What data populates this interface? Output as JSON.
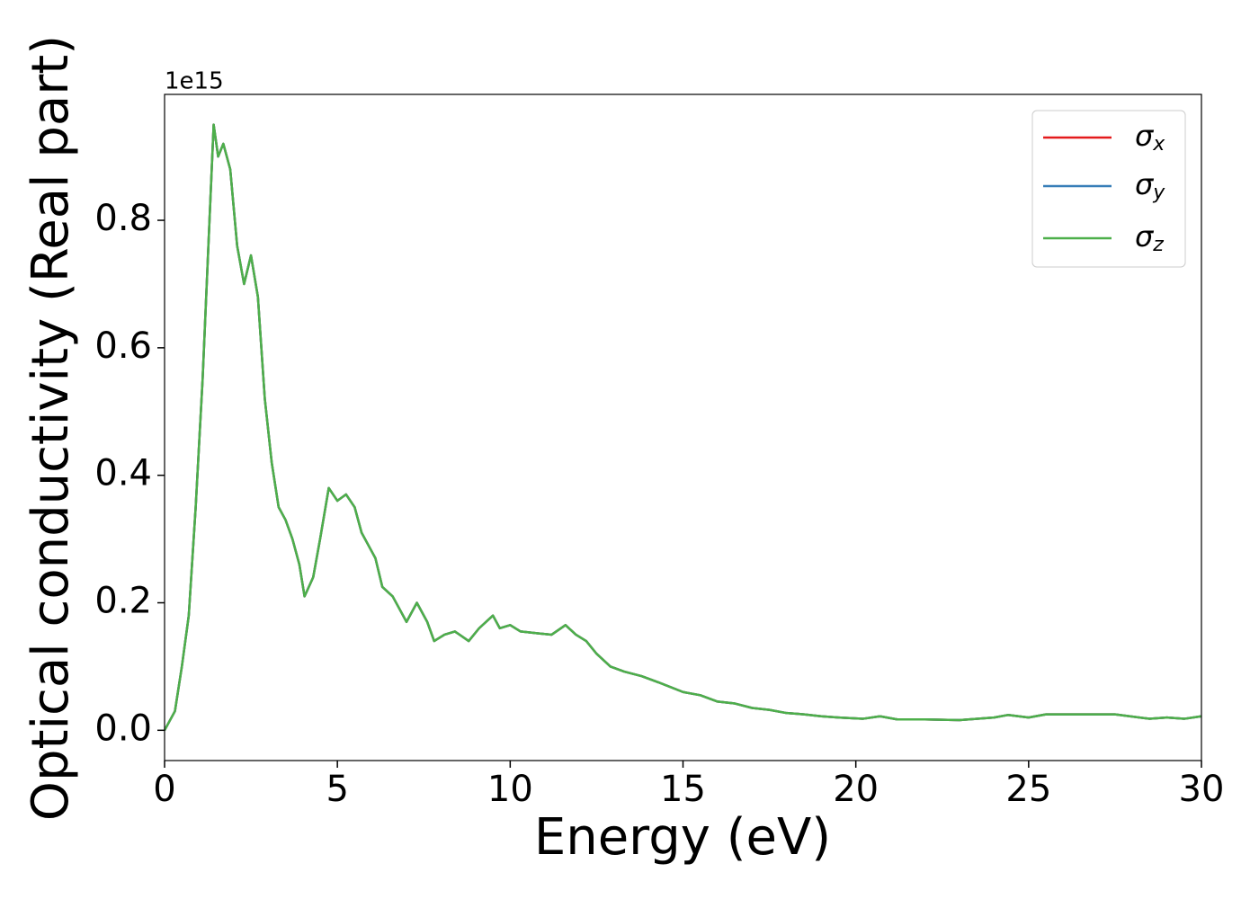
{
  "chart_data": {
    "type": "line",
    "xlabel": "Energy (eV)",
    "ylabel": "Optical conductivity (Real part)",
    "y_offset_label": "1e15",
    "x": [
      0,
      0.3,
      0.5,
      0.7,
      0.9,
      1.1,
      1.3,
      1.42,
      1.55,
      1.7,
      1.9,
      2.1,
      2.3,
      2.5,
      2.7,
      2.9,
      3.1,
      3.3,
      3.5,
      3.7,
      3.9,
      4.05,
      4.3,
      4.5,
      4.75,
      5.0,
      5.25,
      5.5,
      5.7,
      5.9,
      6.1,
      6.3,
      6.6,
      6.8,
      7.0,
      7.3,
      7.6,
      7.8,
      8.1,
      8.4,
      8.8,
      9.1,
      9.5,
      9.7,
      10.0,
      10.3,
      10.8,
      11.2,
      11.6,
      11.9,
      12.2,
      12.5,
      12.9,
      13.3,
      13.8,
      14.3,
      15.0,
      15.5,
      16.0,
      16.5,
      17.0,
      17.5,
      18.0,
      18.5,
      19.0,
      19.5,
      20.2,
      20.7,
      21.2,
      22.0,
      23.0,
      24.0,
      24.4,
      25.0,
      25.5,
      26.5,
      27.5,
      28.5,
      29.0,
      29.5,
      30.0
    ],
    "series": [
      {
        "name": "σx",
        "color": "#e41a1c",
        "values": [
          0,
          0.03,
          0.1,
          0.18,
          0.35,
          0.55,
          0.8,
          0.95,
          0.9,
          0.92,
          0.88,
          0.76,
          0.7,
          0.745,
          0.68,
          0.52,
          0.42,
          0.35,
          0.33,
          0.3,
          0.26,
          0.21,
          0.24,
          0.3,
          0.38,
          0.36,
          0.37,
          0.35,
          0.31,
          0.29,
          0.27,
          0.225,
          0.21,
          0.19,
          0.17,
          0.2,
          0.17,
          0.14,
          0.15,
          0.155,
          0.14,
          0.16,
          0.18,
          0.16,
          0.165,
          0.155,
          0.152,
          0.15,
          0.165,
          0.15,
          0.14,
          0.12,
          0.1,
          0.092,
          0.085,
          0.075,
          0.06,
          0.055,
          0.045,
          0.042,
          0.035,
          0.032,
          0.027,
          0.025,
          0.022,
          0.02,
          0.018,
          0.022,
          0.017,
          0.017,
          0.016,
          0.02,
          0.024,
          0.02,
          0.025,
          0.025,
          0.025,
          0.018,
          0.02,
          0.018,
          0.022
        ]
      },
      {
        "name": "σy",
        "color": "#377eb8",
        "values": [
          0,
          0.03,
          0.1,
          0.18,
          0.35,
          0.55,
          0.8,
          0.95,
          0.9,
          0.92,
          0.88,
          0.76,
          0.7,
          0.745,
          0.68,
          0.52,
          0.42,
          0.35,
          0.33,
          0.3,
          0.26,
          0.21,
          0.24,
          0.3,
          0.38,
          0.36,
          0.37,
          0.35,
          0.31,
          0.29,
          0.27,
          0.225,
          0.21,
          0.19,
          0.17,
          0.2,
          0.17,
          0.14,
          0.15,
          0.155,
          0.14,
          0.16,
          0.18,
          0.16,
          0.165,
          0.155,
          0.152,
          0.15,
          0.165,
          0.15,
          0.14,
          0.12,
          0.1,
          0.092,
          0.085,
          0.075,
          0.06,
          0.055,
          0.045,
          0.042,
          0.035,
          0.032,
          0.027,
          0.025,
          0.022,
          0.02,
          0.018,
          0.022,
          0.017,
          0.017,
          0.016,
          0.02,
          0.024,
          0.02,
          0.025,
          0.025,
          0.025,
          0.018,
          0.02,
          0.018,
          0.022
        ]
      },
      {
        "name": "σz",
        "color": "#4daf4a",
        "values": [
          0,
          0.03,
          0.1,
          0.18,
          0.35,
          0.55,
          0.8,
          0.95,
          0.9,
          0.92,
          0.88,
          0.76,
          0.7,
          0.745,
          0.68,
          0.52,
          0.42,
          0.35,
          0.33,
          0.3,
          0.26,
          0.21,
          0.24,
          0.3,
          0.38,
          0.36,
          0.37,
          0.35,
          0.31,
          0.29,
          0.27,
          0.225,
          0.21,
          0.19,
          0.17,
          0.2,
          0.17,
          0.14,
          0.15,
          0.155,
          0.14,
          0.16,
          0.18,
          0.16,
          0.165,
          0.155,
          0.152,
          0.15,
          0.165,
          0.15,
          0.14,
          0.12,
          0.1,
          0.092,
          0.085,
          0.075,
          0.06,
          0.055,
          0.045,
          0.042,
          0.035,
          0.032,
          0.027,
          0.025,
          0.022,
          0.02,
          0.018,
          0.022,
          0.017,
          0.017,
          0.016,
          0.02,
          0.024,
          0.02,
          0.025,
          0.025,
          0.025,
          0.018,
          0.02,
          0.018,
          0.022
        ]
      }
    ],
    "xlim": [
      0,
      30
    ],
    "xticks": [
      0,
      5,
      10,
      15,
      20,
      25,
      30
    ],
    "ylim": [
      -0.0475,
      0.9975
    ],
    "yticks": [
      {
        "value": 0,
        "label": "0.0"
      },
      0.2,
      0.4,
      0.6,
      0.8
    ],
    "grid": false,
    "legend": "upper right"
  }
}
